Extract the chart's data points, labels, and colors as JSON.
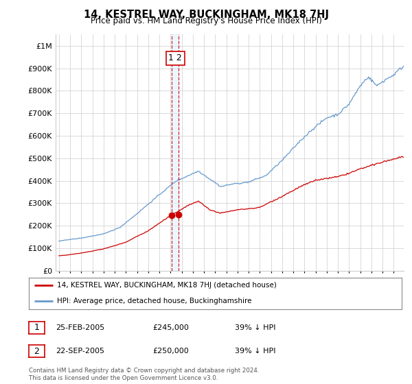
{
  "title": "14, KESTREL WAY, BUCKINGHAM, MK18 7HJ",
  "subtitle": "Price paid vs. HM Land Registry's House Price Index (HPI)",
  "ytick_values": [
    0,
    100000,
    200000,
    300000,
    400000,
    500000,
    600000,
    700000,
    800000,
    900000,
    1000000
  ],
  "ylim": [
    0,
    1050000
  ],
  "hpi_color": "#6699cc",
  "price_color": "#cc0000",
  "dashed_line_color": "#cc0000",
  "t1": 2005.12,
  "t2": 2005.72,
  "p1": 245000,
  "p2": 250000,
  "legend_price_label": "14, KESTREL WAY, BUCKINGHAM, MK18 7HJ (detached house)",
  "legend_hpi_label": "HPI: Average price, detached house, Buckinghamshire",
  "table_rows": [
    {
      "num": "1",
      "date": "25-FEB-2005",
      "price": "£245,000",
      "hpi": "39% ↓ HPI"
    },
    {
      "num": "2",
      "date": "22-SEP-2005",
      "price": "£250,000",
      "hpi": "39% ↓ HPI"
    }
  ],
  "footer": "Contains HM Land Registry data © Crown copyright and database right 2024.\nThis data is licensed under the Open Government Licence v3.0.",
  "background_color": "#ffffff",
  "grid_color": "#cccccc"
}
